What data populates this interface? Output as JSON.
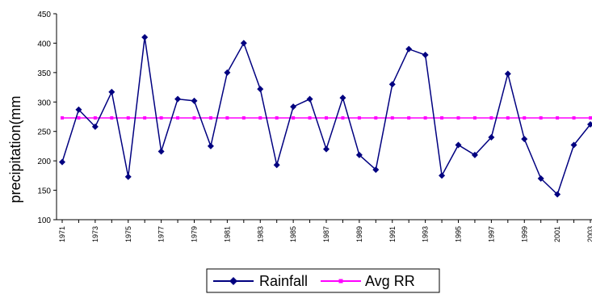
{
  "chart_data": {
    "type": "line",
    "ylabel": "precipitation(mm",
    "xlabel": "",
    "ylim": [
      100,
      450
    ],
    "yticks": [
      100,
      150,
      200,
      250,
      300,
      350,
      400,
      450
    ],
    "x": [
      1971,
      1972,
      1973,
      1974,
      1975,
      1976,
      1977,
      1978,
      1979,
      1980,
      1981,
      1982,
      1983,
      1984,
      1985,
      1986,
      1987,
      1988,
      1989,
      1990,
      1991,
      1992,
      1993,
      1994,
      1995,
      1996,
      1997,
      1998,
      1999,
      2000,
      2001,
      2002,
      2003
    ],
    "x_tick_labels": [
      "1971",
      "1973",
      "1975",
      "1977",
      "1979",
      "1981",
      "1983",
      "1985",
      "1987",
      "1989",
      "1991",
      "1993",
      "1995",
      "1997",
      "1999",
      "2001",
      "2003"
    ],
    "series": [
      {
        "name": "Rainfall",
        "color": "#000080",
        "marker": "diamond",
        "values": [
          198,
          287,
          258,
          317,
          173,
          410,
          216,
          305,
          302,
          225,
          350,
          400,
          322,
          193,
          292,
          305,
          220,
          307,
          210,
          185,
          330,
          390,
          380,
          175,
          227,
          210,
          240,
          348,
          237,
          170,
          143,
          227,
          262
        ]
      },
      {
        "name": "Avg RR",
        "color": "#ff00ff",
        "marker": "square",
        "values": [
          273,
          273,
          273,
          273,
          273,
          273,
          273,
          273,
          273,
          273,
          273,
          273,
          273,
          273,
          273,
          273,
          273,
          273,
          273,
          273,
          273,
          273,
          273,
          273,
          273,
          273,
          273,
          273,
          273,
          273,
          273,
          273,
          273
        ]
      }
    ],
    "grid": false,
    "legend_position": "bottom"
  }
}
